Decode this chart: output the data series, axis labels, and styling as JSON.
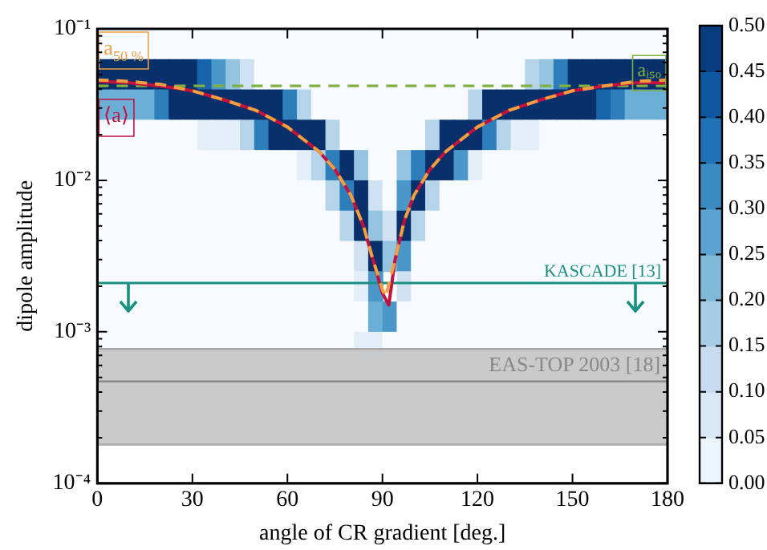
{
  "chart_data": [
    {
      "type": "heatmap",
      "tick_labels": false,
      "categories": [
        null,
        null,
        null,
        null,
        null,
        null,
        null,
        null,
        null,
        null,
        null,
        null,
        null,
        null,
        null,
        null,
        null,
        null,
        null,
        null,
        null,
        null,
        null,
        null,
        null,
        null,
        null,
        null,
        null,
        null,
        null,
        null,
        null,
        null,
        null,
        null,
        null,
        null,
        null,
        null
      ],
      "y_categories": [
        null,
        null,
        null,
        null,
        null,
        null,
        null,
        null,
        null,
        null,
        null
      ],
      "cells": [
        [
          0,
          0,
          0,
          0,
          0,
          0,
          0,
          0,
          0,
          0,
          0,
          0,
          0,
          0,
          0,
          0,
          0,
          0,
          0,
          0,
          0,
          0,
          0,
          0,
          0,
          0,
          0,
          0,
          0,
          0,
          0,
          0,
          0,
          0,
          0,
          0,
          0,
          0,
          0,
          0
        ],
        [
          0.5,
          0.5,
          0.5,
          0.5,
          0.5,
          0.5,
          0.5,
          0.4,
          0.3,
          0.2,
          0.1,
          0,
          0,
          0,
          0,
          0,
          0,
          0,
          0,
          0,
          0,
          0,
          0,
          0,
          0,
          0,
          0,
          0,
          0,
          0,
          0.15,
          0.2,
          0.35,
          0.5,
          0.5,
          0.5,
          0.5,
          0.5,
          0.5,
          0.5
        ],
        [
          0.25,
          0.25,
          0.25,
          0.25,
          0.35,
          0.5,
          0.5,
          0.5,
          0.5,
          0.5,
          0.5,
          0.5,
          0.5,
          0.35,
          0.15,
          0,
          0,
          0,
          0,
          0,
          0,
          0,
          0,
          0,
          0,
          0,
          0.15,
          0.5,
          0.5,
          0.5,
          0.5,
          0.5,
          0.5,
          0.5,
          0.5,
          0.4,
          0.35,
          0.25,
          0.25,
          0.25
        ],
        [
          0,
          0,
          0,
          0,
          0,
          0,
          0,
          0.05,
          0.05,
          0.05,
          0.15,
          0.35,
          0.5,
          0.5,
          0.5,
          0.5,
          0.15,
          0,
          0,
          0,
          0,
          0,
          0,
          0.15,
          0.5,
          0.5,
          0.5,
          0.35,
          0.15,
          0.05,
          0.05,
          0,
          0,
          0,
          0,
          0,
          0,
          0,
          0,
          0
        ],
        [
          0,
          0,
          0,
          0,
          0,
          0,
          0,
          0,
          0,
          0,
          0,
          0,
          0,
          0,
          0.05,
          0.15,
          0.35,
          0.5,
          0.2,
          0,
          0,
          0.2,
          0.35,
          0.5,
          0.5,
          0.3,
          0.05,
          0,
          0,
          0,
          0,
          0,
          0,
          0,
          0,
          0,
          0,
          0,
          0,
          0
        ],
        [
          0,
          0,
          0,
          0,
          0,
          0,
          0,
          0,
          0,
          0,
          0,
          0,
          0,
          0,
          0,
          0,
          0.15,
          0.35,
          0.5,
          0.1,
          0,
          0.3,
          0.5,
          0.15,
          0,
          0,
          0,
          0,
          0,
          0,
          0,
          0,
          0,
          0,
          0,
          0,
          0,
          0,
          0,
          0
        ],
        [
          0,
          0,
          0,
          0,
          0,
          0,
          0,
          0,
          0,
          0,
          0,
          0,
          0,
          0,
          0,
          0,
          0,
          0.15,
          0.5,
          0.2,
          0.1,
          0.5,
          0.15,
          0,
          0,
          0,
          0,
          0,
          0,
          0,
          0,
          0,
          0,
          0,
          0,
          0,
          0,
          0,
          0,
          0
        ],
        [
          0,
          0,
          0,
          0,
          0,
          0,
          0,
          0,
          0,
          0,
          0,
          0,
          0,
          0,
          0,
          0,
          0,
          0,
          0.1,
          0.5,
          0.2,
          0.3,
          0,
          0,
          0,
          0,
          0,
          0,
          0,
          0,
          0,
          0,
          0,
          0,
          0,
          0,
          0,
          0,
          0,
          0
        ],
        [
          0,
          0,
          0,
          0,
          0,
          0,
          0,
          0,
          0,
          0,
          0,
          0,
          0,
          0,
          0,
          0,
          0,
          0,
          0.05,
          0.3,
          null,
          0.1,
          0,
          0,
          0,
          0,
          0,
          0,
          0,
          0,
          0,
          0,
          0,
          0,
          0,
          0,
          0,
          0,
          0,
          0
        ],
        [
          0,
          0,
          0,
          0,
          0,
          0,
          0,
          0,
          0,
          0,
          0,
          0,
          0,
          0,
          0,
          0,
          0,
          0,
          0,
          0.25,
          0.3,
          0,
          0,
          0,
          0,
          0,
          0,
          0,
          0,
          0,
          0,
          0,
          0,
          0,
          0,
          0,
          0,
          0,
          0,
          0
        ],
        [
          0,
          0,
          0,
          0,
          0,
          0,
          0,
          0,
          0,
          0,
          0,
          0,
          0,
          0,
          0,
          0,
          0,
          0,
          0.05,
          0.05,
          0,
          0,
          0,
          0,
          0,
          0,
          0,
          0,
          0,
          0,
          0,
          0,
          0,
          0,
          0,
          0,
          0,
          0,
          0,
          0
        ]
      ],
      "clim": [
        0,
        0.5
      ],
      "cticks": [
        {
          "value": 0,
          "label": "0.00"
        },
        {
          "value": 0.05,
          "label": "0.05"
        },
        {
          "value": 0.1,
          "label": "0.10"
        },
        {
          "value": 0.15,
          "label": "0.15"
        },
        {
          "value": 0.2,
          "label": "0.20"
        },
        {
          "value": 0.25,
          "label": "0.25"
        },
        {
          "value": 0.3,
          "label": "0.30"
        },
        {
          "value": 0.35,
          "label": "0.35"
        },
        {
          "value": 0.4,
          "label": "0.40"
        },
        {
          "value": 0.45,
          "label": "0.45"
        },
        {
          "value": 0.5,
          "label": "0.50"
        }
      ]
    },
    {
      "type": "line",
      "xlabel": "angle of CR gradient [deg.]",
      "ylabel": "dipole amplitude",
      "xlim": [
        0,
        180
      ],
      "xticks": [
        0,
        30,
        60,
        90,
        120,
        150,
        180
      ],
      "ylim": [
        0.0001,
        0.1
      ],
      "yticks": [
        {
          "value": 0.0001,
          "label": "10⁻⁴"
        },
        {
          "value": 0.0002,
          "label": null
        },
        {
          "value": 0.0003,
          "label": null
        },
        {
          "value": 0.0004,
          "label": null
        },
        {
          "value": 0.0005,
          "label": null
        },
        {
          "value": 0.0006,
          "label": null
        },
        {
          "value": 0.0007,
          "label": null
        },
        {
          "value": 0.0008,
          "label": null
        },
        {
          "value": 0.0009,
          "label": null
        },
        {
          "value": 0.001,
          "label": "10⁻³"
        },
        {
          "value": 0.002,
          "label": null
        },
        {
          "value": 0.003,
          "label": null
        },
        {
          "value": 0.004,
          "label": null
        },
        {
          "value": 0.005,
          "label": null
        },
        {
          "value": 0.006,
          "label": null
        },
        {
          "value": 0.007,
          "label": null
        },
        {
          "value": 0.008,
          "label": null
        },
        {
          "value": 0.009,
          "label": null
        },
        {
          "value": 0.01,
          "label": "10⁻²"
        },
        {
          "value": 0.02,
          "label": null
        },
        {
          "value": 0.03,
          "label": null
        },
        {
          "value": 0.04,
          "label": null
        },
        {
          "value": 0.05,
          "label": null
        },
        {
          "value": 0.06,
          "label": null
        },
        {
          "value": 0.07,
          "label": null
        },
        {
          "value": 0.08,
          "label": null
        },
        {
          "value": 0.09,
          "label": null
        },
        {
          "value": 0.1,
          "label": "10⁻¹"
        }
      ],
      "log": "y",
      "series": [
        {
          "name": "⟨a⟩",
          "color": "#c4123f",
          "x": [
            0,
            10,
            20,
            30,
            40,
            50,
            60,
            70,
            75,
            80,
            84,
            87,
            90,
            92,
            94,
            97,
            100,
            105,
            110,
            120,
            130,
            140,
            150,
            160,
            170,
            180
          ],
          "values": [
            0.045,
            0.044,
            0.042,
            0.039,
            0.034,
            0.029,
            0.0225,
            0.0155,
            0.0118,
            0.008,
            0.005,
            0.003,
            0.0018,
            0.0015,
            0.003,
            0.0055,
            0.008,
            0.0118,
            0.0155,
            0.0225,
            0.029,
            0.034,
            0.039,
            0.042,
            0.044,
            0.044
          ]
        },
        {
          "name": "a$_{50 %}$",
          "line_style": "dashed",
          "color": "#f0a040",
          "x": [
            0,
            10,
            20,
            30,
            40,
            50,
            60,
            70,
            75,
            80,
            84,
            87,
            90,
            91,
            94,
            97,
            100,
            105,
            110,
            120,
            130,
            140,
            150,
            160,
            170,
            180
          ],
          "values": [
            0.046,
            0.045,
            0.043,
            0.039,
            0.034,
            0.029,
            0.0225,
            0.0155,
            0.0118,
            0.008,
            0.005,
            0.003,
            0.0019,
            0.0017,
            0.003,
            0.0055,
            0.008,
            0.0118,
            0.0155,
            0.0225,
            0.029,
            0.034,
            0.039,
            0.042,
            0.045,
            0.046
          ]
        }
      ],
      "ref_lines": [
        {
          "axis": "y",
          "value": 0.042,
          "label": "aᵢₛₒ",
          "color": "#7fb040",
          "line_style": "dashed"
        },
        {
          "axis": "y",
          "value": 0.0021,
          "label": "KASCADE [13]",
          "color": "#1a9080"
        },
        {
          "axis": "y",
          "value": 0.00047,
          "color": "#888888"
        },
        {
          "axis": "y",
          "value": 0.00077,
          "color": "#a8a8a8"
        },
        {
          "axis": "y",
          "value": 0.00018,
          "color": "#a8a8a8"
        }
      ],
      "bands": [
        {
          "axis": "y",
          "from": 0.00018,
          "to": 0.00077,
          "label": "EAS-TOP 2003 [18]",
          "color": "#c4c4c4"
        }
      ]
    }
  ]
}
